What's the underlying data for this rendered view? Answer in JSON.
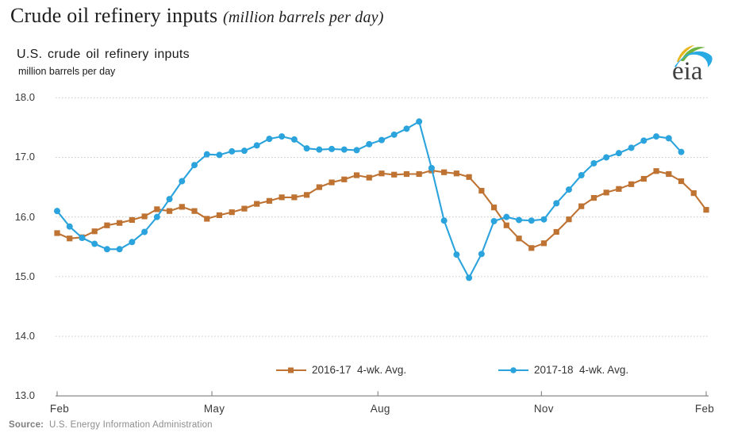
{
  "page_title": {
    "main": "Crude oil refinery inputs",
    "unit_note": "(million barrels per day)"
  },
  "header": {
    "chart_title": "U.S. crude oil refinery inputs",
    "unit_label": "million barrels per day",
    "logo_text": "eia"
  },
  "source": {
    "label": "Source:",
    "text": "U.S. Energy Information Administration"
  },
  "colors": {
    "series_2016_17": "#bf7333",
    "series_2017_18": "#2ba3dc",
    "gridline": "#c6c6c6",
    "axis": "#8c8c8c",
    "tick_text": "#3a3a3a",
    "logo_yellow": "#eab41e",
    "logo_green": "#6cb33f",
    "logo_blue": "#29aae2"
  },
  "chart_data": {
    "type": "line",
    "title": "U.S. crude oil refinery inputs",
    "xlabel": "",
    "ylabel": "million barrels per day",
    "ylim": [
      13.0,
      18.0
    ],
    "ytick_step": 1.0,
    "ytick_labels": [
      "13.0",
      "14.0",
      "15.0",
      "16.0",
      "17.0",
      "18.0"
    ],
    "grid": "horizontal-dotted",
    "legend_position": "bottom-center",
    "x_unit": "weeks (Feb 2016/17 through Feb of following year)",
    "xticks": [
      {
        "label": "Feb",
        "week": 0
      },
      {
        "label": "May",
        "week": 12.4
      },
      {
        "label": "Aug",
        "week": 25.7
      },
      {
        "label": "Nov",
        "week": 38.8
      },
      {
        "label": "Feb",
        "week": 52
      }
    ],
    "series": [
      {
        "name": "2016-17  4-wk. Avg.",
        "color": "#bf7333",
        "marker": "square",
        "start_week": 0,
        "values": [
          15.73,
          15.64,
          15.66,
          15.76,
          15.86,
          15.9,
          15.95,
          16.01,
          16.13,
          16.1,
          16.17,
          16.1,
          15.97,
          16.03,
          16.08,
          16.14,
          16.22,
          16.27,
          16.33,
          16.33,
          16.37,
          16.5,
          16.58,
          16.63,
          16.7,
          16.66,
          16.73,
          16.71,
          16.72,
          16.72,
          16.78,
          16.75,
          16.73,
          16.67,
          16.44,
          16.16,
          15.86,
          15.64,
          15.48,
          15.56,
          15.75,
          15.96,
          16.18,
          16.32,
          16.41,
          16.47,
          16.55,
          16.64,
          16.77,
          16.72,
          16.6,
          16.4,
          16.12
        ]
      },
      {
        "name": "2017-18  4-wk. Avg.",
        "color": "#2ba3dc",
        "marker": "circle",
        "start_week": 0,
        "values": [
          16.1,
          15.84,
          15.65,
          15.55,
          15.46,
          15.46,
          15.58,
          15.75,
          16.0,
          16.3,
          16.6,
          16.87,
          17.05,
          17.04,
          17.1,
          17.11,
          17.2,
          17.31,
          17.35,
          17.3,
          17.15,
          17.13,
          17.14,
          17.13,
          17.12,
          17.22,
          17.29,
          17.38,
          17.48,
          17.6,
          16.82,
          15.94,
          15.37,
          14.98,
          15.38,
          15.93,
          16.0,
          15.95,
          15.94,
          15.96,
          16.23,
          16.46,
          16.7,
          16.9,
          17.0,
          17.07,
          17.16,
          17.28,
          17.35,
          17.32,
          17.09
        ]
      }
    ]
  }
}
